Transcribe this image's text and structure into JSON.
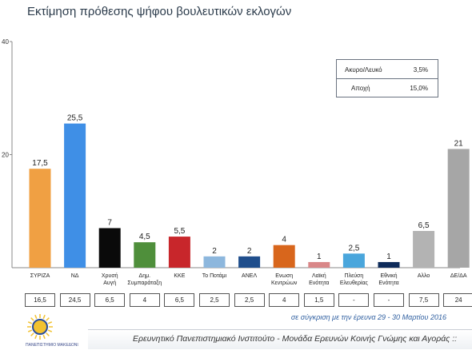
{
  "title": "Εκτίμηση πρόθεσης ψήφου βουλευτικών εκλογών",
  "chart_data": {
    "type": "bar",
    "categories": [
      "ΣΥΡΙΖΑ",
      "ΝΔ",
      "Χρυσή Αυγή",
      "Δημ. Συμπαράταξη",
      "ΚΚΕ",
      "Το Ποτάμι",
      "ΑΝΕΛ",
      "Ενωση Κεντρώων",
      "Λαϊκή Ενότητα",
      "Πλεύση Ελευθερίας",
      "Εθνική Ενότητα",
      "Αλλο",
      "ΔΕ/ΔΑ"
    ],
    "category_lines": [
      [
        "ΣΥΡΙΖΑ"
      ],
      [
        "ΝΔ"
      ],
      [
        "Χρυσή",
        "Αυγή"
      ],
      [
        "Δημ.",
        "Συμπαράταξη"
      ],
      [
        "ΚΚΕ"
      ],
      [
        "Το Ποτάμι"
      ],
      [
        "ΑΝΕΛ"
      ],
      [
        "Ενωση",
        "Κεντρώων"
      ],
      [
        "Λαϊκή",
        "Ενότητα"
      ],
      [
        "Πλεύση",
        "Ελευθερίας"
      ],
      [
        "Εθνική",
        "Ενότητα"
      ],
      [
        "Αλλο"
      ],
      [
        "ΔΕ/ΔΑ"
      ]
    ],
    "values": [
      17.5,
      25.5,
      7,
      4.5,
      5.5,
      2,
      2,
      4,
      1,
      2.5,
      1,
      6.5,
      21
    ],
    "value_labels": [
      "17,5",
      "25,5",
      "7",
      "4,5",
      "5,5",
      "2",
      "2",
      "4",
      "1",
      "2,5",
      "1",
      "6,5",
      "21"
    ],
    "colors": [
      "#f0a043",
      "#3f8fe6",
      "#0a0a0a",
      "#4f8f3b",
      "#c8262b",
      "#8db7dd",
      "#1f4e8c",
      "#d8661c",
      "#d98788",
      "#4aa6dc",
      "#0e2b5a",
      "#b3b3b3",
      "#a6a6a6"
    ],
    "ylim": [
      0,
      40
    ],
    "yticks": [
      "40",
      "20"
    ],
    "comparison": [
      "16,5",
      "24,5",
      "6,5",
      "4",
      "6,5",
      "2,5",
      "2,5",
      "4",
      "1,5",
      "-",
      "-",
      "7,5",
      "24"
    ]
  },
  "legend_box": {
    "rows": [
      {
        "label": "Ακυρο/Λευκό",
        "value": "3,5%"
      },
      {
        "label": "Αποχή",
        "value": "15,0%"
      }
    ]
  },
  "note": "σε σύγκριση με την έρευνα 29 - 30 Μαρτίου 2016",
  "footer": "Ερευνητικό Πανεπιστημιακό Ινστιτούτο - Μονάδα Ερευνών Κοινής Γνώμης και Αγοράς ::",
  "logo": {
    "caption": "ΠΑΝΕΠΙΣΤΗΜΙΟ ΜΑΚΕΔΟΝΙΑΣ",
    "colors": [
      "#f2c230",
      "#2a4d9a"
    ]
  }
}
